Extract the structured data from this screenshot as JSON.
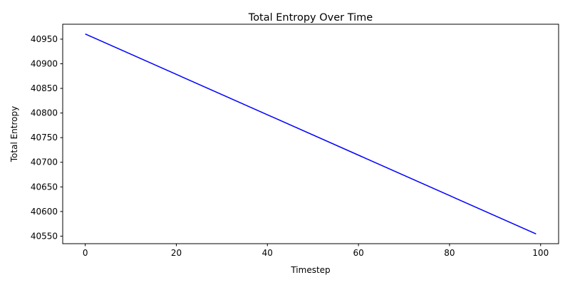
{
  "chart_data": {
    "type": "line",
    "title": "Total Entropy Over Time",
    "xlabel": "Timestep",
    "ylabel": "Total Entropy",
    "xlim": [
      -4.95,
      103.95
    ],
    "ylim": [
      40534.7,
      40980.3
    ],
    "xticks": [
      0,
      20,
      40,
      60,
      80,
      100
    ],
    "yticks": [
      40550,
      40600,
      40650,
      40700,
      40750,
      40800,
      40850,
      40900,
      40950
    ],
    "grid": false,
    "legend": "none",
    "series": [
      {
        "color": "#0000ff",
        "x": [
          0,
          99
        ],
        "y": [
          40960.5,
          40554.5
        ]
      }
    ]
  }
}
